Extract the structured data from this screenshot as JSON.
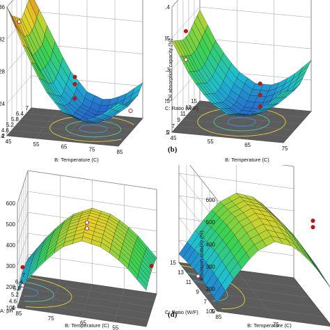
{
  "chart_data": [
    {
      "type": "surface3d",
      "panel_label": "",
      "zlabel": "",
      "xlabel": "B: Temperature (C)",
      "ylabel": "",
      "x_ticks": [
        "45",
        "55",
        "65",
        "75",
        "85"
      ],
      "y_ticks": [
        "4",
        "4.6",
        "5.2",
        "5.8",
        "6.4",
        "7"
      ],
      "z_ticks": [
        ".36",
        "0.32",
        "0.28",
        "0.24",
        "0.2"
      ],
      "zlim": [
        0.18,
        0.36
      ],
      "surface_rows": [
        [
          0.36,
          0.3,
          0.25,
          0.22,
          0.21,
          0.22,
          0.24
        ],
        [
          0.34,
          0.29,
          0.24,
          0.21,
          0.2,
          0.21,
          0.23
        ],
        [
          0.33,
          0.27,
          0.23,
          0.2,
          0.19,
          0.2,
          0.22
        ],
        [
          0.32,
          0.27,
          0.22,
          0.2,
          0.19,
          0.2,
          0.22
        ],
        [
          0.33,
          0.27,
          0.23,
          0.2,
          0.19,
          0.2,
          0.22
        ],
        [
          0.34,
          0.29,
          0.24,
          0.21,
          0.2,
          0.21,
          0.23
        ]
      ],
      "points": [
        {
          "x": 45,
          "y": 5.5,
          "z": 0.32
        },
        {
          "x": 65,
          "y": 5.5,
          "z": 0.25
        },
        {
          "x": 65,
          "y": 5.5,
          "z": 0.24
        },
        {
          "x": 65,
          "y": 5.5,
          "z": 0.22
        },
        {
          "x": 85,
          "y": 5.5,
          "z": 0.21
        }
      ]
    },
    {
      "type": "surface3d",
      "panel_label": "(b)",
      "zlabel": "Oil absorption capacity (%)",
      "xlabel": "B: Temperature (C)",
      "ylabel": "C: Ratio (W/F)",
      "x_ticks": [
        "45",
        "55",
        "65",
        "75"
      ],
      "y_ticks": [
        "5",
        "7",
        "9",
        "11",
        "13",
        "15"
      ],
      "z_ticks": [
        "0.4",
        "0.35",
        "0.3",
        "0.25",
        "0.2"
      ],
      "zlim": [
        0.18,
        0.4
      ],
      "surface_rows": [
        [
          0.34,
          0.28,
          0.24,
          0.22,
          0.22,
          0.24,
          0.27
        ],
        [
          0.33,
          0.27,
          0.23,
          0.21,
          0.21,
          0.23,
          0.26
        ],
        [
          0.32,
          0.26,
          0.22,
          0.2,
          0.2,
          0.22,
          0.25
        ],
        [
          0.32,
          0.26,
          0.22,
          0.2,
          0.2,
          0.22,
          0.25
        ],
        [
          0.33,
          0.27,
          0.23,
          0.21,
          0.21,
          0.23,
          0.26
        ],
        [
          0.34,
          0.28,
          0.24,
          0.22,
          0.22,
          0.24,
          0.27
        ]
      ],
      "points": [
        {
          "x": 45,
          "y": 10,
          "z": 0.33
        },
        {
          "x": 45,
          "y": 10,
          "z": 0.28
        },
        {
          "x": 65,
          "y": 10,
          "z": 0.25
        },
        {
          "x": 65,
          "y": 10,
          "z": 0.23
        },
        {
          "x": 65,
          "y": 10,
          "z": 0.21
        }
      ]
    },
    {
      "type": "surface3d",
      "panel_label": "",
      "zlabel": "",
      "xlabel": "B: Temperature (C)",
      "ylabel": "A: pH",
      "x_ticks": [
        "85",
        "75",
        "65",
        "55",
        "45"
      ],
      "y_ticks": [
        "4",
        "4.6",
        "5.2",
        "5.8",
        "6.4",
        "7"
      ],
      "z_ticks": [
        "600",
        "500",
        "400",
        "300",
        "200",
        "100"
      ],
      "zlim": [
        80,
        600
      ],
      "surface_rows": [
        [
          160,
          300,
          410,
          460,
          440,
          370,
          260
        ],
        [
          170,
          310,
          420,
          470,
          450,
          380,
          270
        ],
        [
          175,
          315,
          425,
          475,
          455,
          385,
          275
        ],
        [
          175,
          315,
          425,
          475,
          455,
          385,
          275
        ],
        [
          170,
          310,
          420,
          470,
          450,
          380,
          270
        ],
        [
          160,
          300,
          410,
          460,
          440,
          370,
          260
        ]
      ],
      "points": [
        {
          "x": 85,
          "y": 5.5,
          "z": 200
        },
        {
          "x": 85,
          "y": 5.5,
          "z": 110
        },
        {
          "x": 65,
          "y": 5.5,
          "z": 470
        },
        {
          "x": 65,
          "y": 5.5,
          "z": 440
        },
        {
          "x": 45,
          "y": 5.5,
          "z": 300
        }
      ]
    },
    {
      "type": "surface3d",
      "panel_label": "(d)",
      "zlabel": "Emulsion stability (%)",
      "xlabel": "B: Temperature (C)",
      "ylabel": "C: Ratio (W/F)",
      "x_ticks": [
        "85",
        "75",
        "65"
      ],
      "y_ticks": [
        "5",
        "7",
        "9",
        "11",
        "13",
        "15"
      ],
      "z_ticks": [
        "600",
        "500",
        "400",
        "300",
        "200",
        "100"
      ],
      "zlim": [
        80,
        600
      ],
      "surface_rows": [
        [
          120,
          260,
          380,
          440,
          430,
          360,
          250
        ],
        [
          130,
          270,
          390,
          450,
          440,
          370,
          260
        ],
        [
          140,
          280,
          400,
          460,
          450,
          380,
          270
        ],
        [
          140,
          280,
          400,
          460,
          450,
          380,
          270
        ],
        [
          130,
          270,
          390,
          450,
          440,
          370,
          260
        ],
        [
          120,
          260,
          380,
          440,
          430,
          360,
          250
        ]
      ],
      "points": [
        {
          "x": 85,
          "y": 10,
          "z": 130
        },
        {
          "x": 65,
          "y": 10,
          "z": 460
        },
        {
          "x": 65,
          "y": 10,
          "z": 430
        },
        {
          "x": 55,
          "y": 10,
          "z": 300
        }
      ]
    }
  ],
  "colors": {
    "floor": "#5c5c5c",
    "grid": "#9a9a9a",
    "point": "#b51818",
    "point_hollow": "#ffffff",
    "contour_low": "#3a8fd8",
    "contour_high": "#d8c840"
  }
}
